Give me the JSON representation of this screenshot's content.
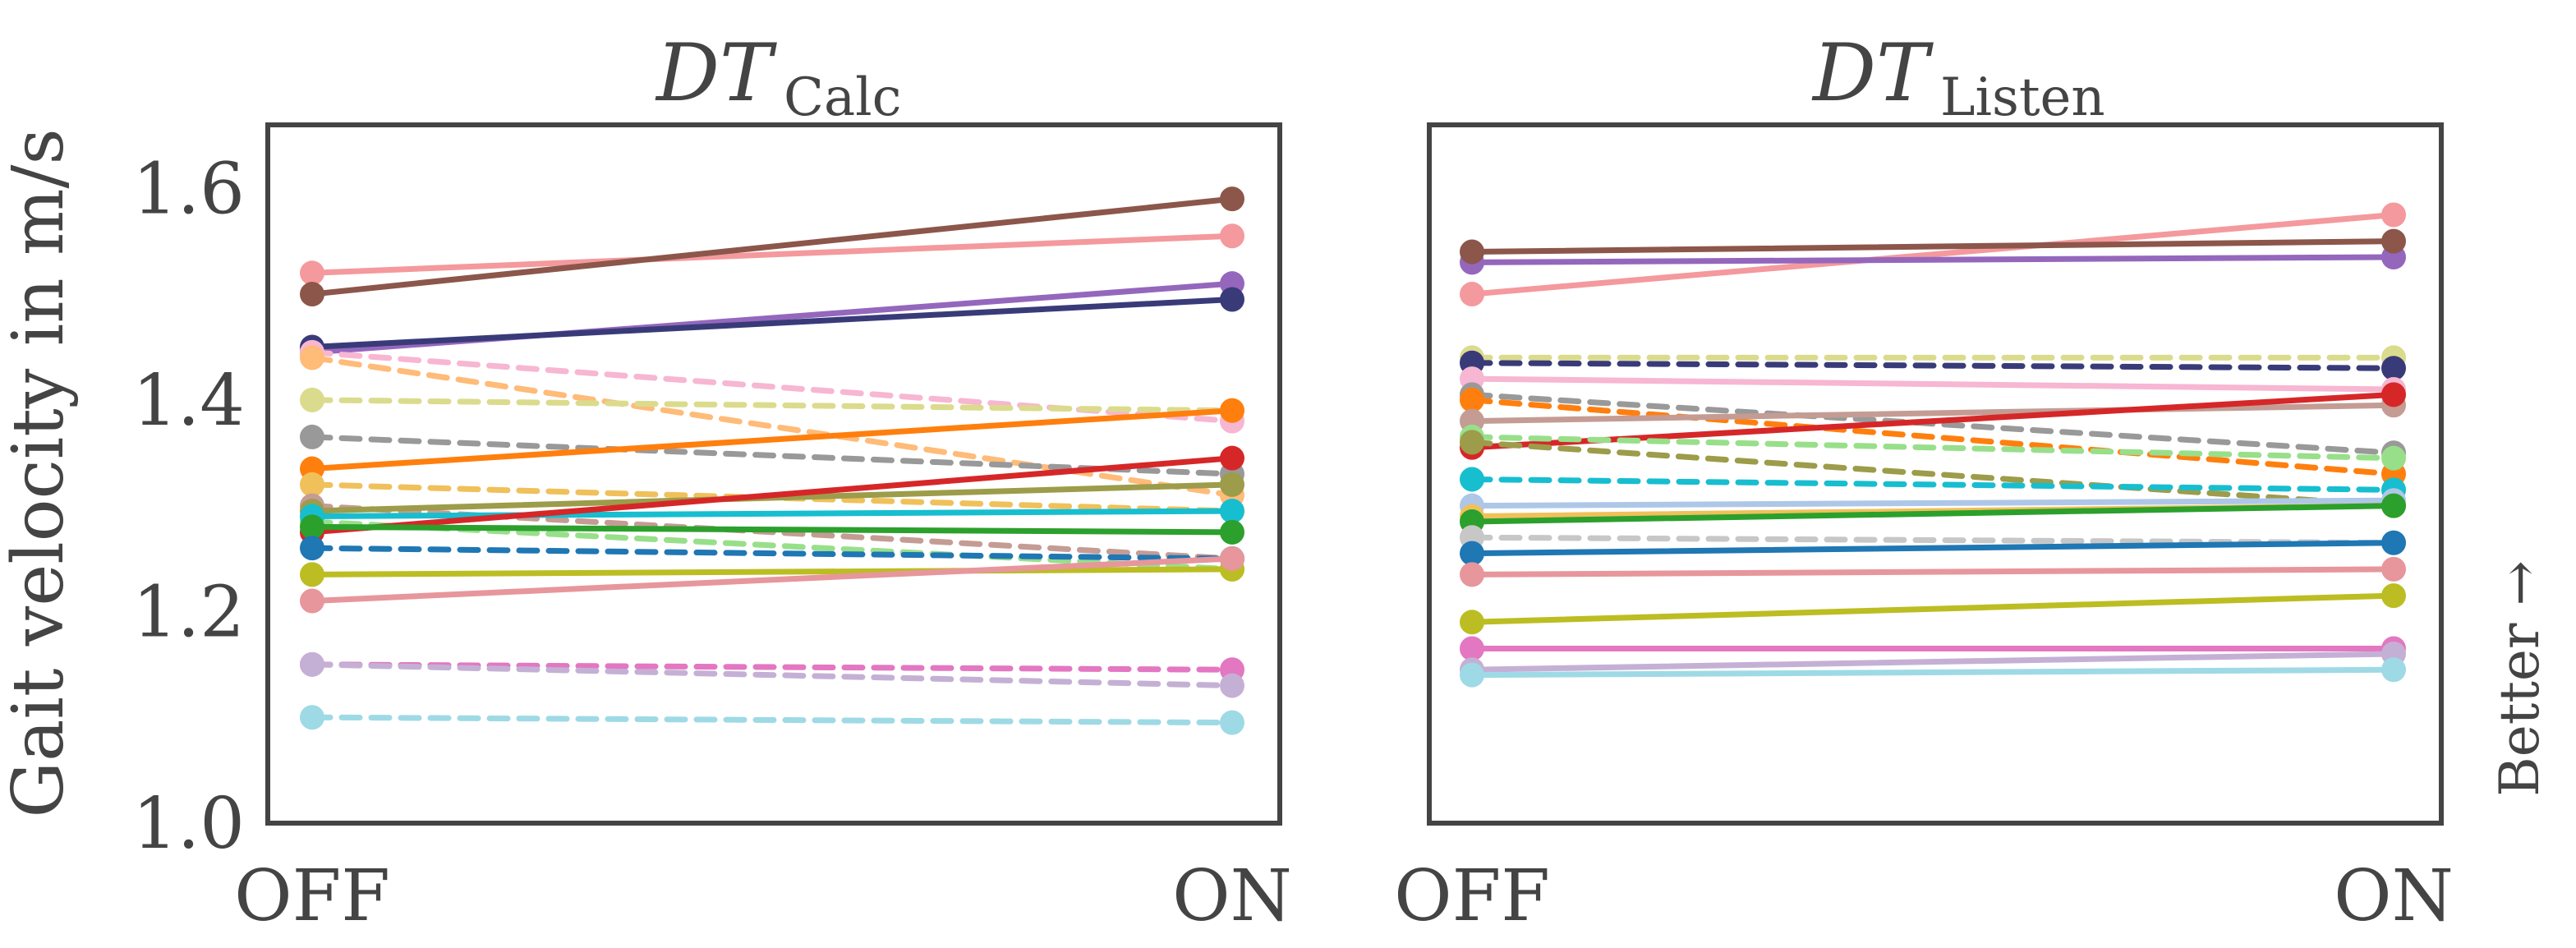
{
  "figure": {
    "ylabel": "Gait velocity in m/s",
    "right_note": "Better →"
  },
  "chart_data": [
    {
      "type": "line",
      "title_main": "DT",
      "title_sub": "Calc",
      "categories": [
        "OFF",
        "ON"
      ],
      "ylabel": "Gait velocity in m/s",
      "ylim": [
        1.0,
        1.66
      ],
      "yticks": [
        "1.0",
        "1.2",
        "1.4",
        "1.6"
      ],
      "yticks_values": [
        1.0,
        1.2,
        1.4,
        1.6
      ],
      "grid": false,
      "series": [
        {
          "values": [
            1.52,
            1.555
          ],
          "color": "#f4999d",
          "dashed": false
        },
        {
          "values": [
            1.5,
            1.59
          ],
          "color": "#8c564b",
          "dashed": false
        },
        {
          "values": [
            1.445,
            1.51
          ],
          "color": "#9467bd",
          "dashed": false
        },
        {
          "values": [
            1.45,
            1.495
          ],
          "color": "#393b79",
          "dashed": false
        },
        {
          "values": [
            1.445,
            1.38
          ],
          "color": "#f7b6d2",
          "dashed": true
        },
        {
          "values": [
            1.44,
            1.31
          ],
          "color": "#ffbb78",
          "dashed": true
        },
        {
          "values": [
            1.4,
            1.39
          ],
          "color": "#dbdb8d",
          "dashed": true
        },
        {
          "values": [
            1.365,
            1.33
          ],
          "color": "#999999",
          "dashed": true
        },
        {
          "values": [
            1.335,
            1.39
          ],
          "color": "#ff7f0e",
          "dashed": false
        },
        {
          "values": [
            1.32,
            1.295
          ],
          "color": "#f0c05a",
          "dashed": true
        },
        {
          "values": [
            1.3,
            1.25
          ],
          "color": "#c49c94",
          "dashed": true
        },
        {
          "values": [
            1.295,
            1.32
          ],
          "color": "#9c9c4a",
          "dashed": false
        },
        {
          "values": [
            1.285,
            1.24
          ],
          "color": "#98df8a",
          "dashed": true
        },
        {
          "values": [
            1.29,
            1.295
          ],
          "color": "#17becf",
          "dashed": false
        },
        {
          "values": [
            1.275,
            1.345
          ],
          "color": "#d62728",
          "dashed": false
        },
        {
          "values": [
            1.28,
            1.275
          ],
          "color": "#2ca02c",
          "dashed": false
        },
        {
          "values": [
            1.26,
            1.25
          ],
          "color": "#1f77b4",
          "dashed": true
        },
        {
          "values": [
            1.235,
            1.24
          ],
          "color": "#bcbd22",
          "dashed": false
        },
        {
          "values": [
            1.21,
            1.25
          ],
          "color": "#e7969c",
          "dashed": false
        },
        {
          "values": [
            1.15,
            1.145
          ],
          "color": "#e377c2",
          "dashed": true
        },
        {
          "values": [
            1.15,
            1.13
          ],
          "color": "#c5b0d5",
          "dashed": true
        },
        {
          "values": [
            1.1,
            1.095
          ],
          "color": "#9edae5",
          "dashed": true
        }
      ]
    },
    {
      "type": "line",
      "title_main": "DT",
      "title_sub": "Listen",
      "categories": [
        "OFF",
        "ON"
      ],
      "ylim": [
        1.0,
        1.66
      ],
      "grid": false,
      "series": [
        {
          "values": [
            1.5,
            1.575
          ],
          "color": "#f4999d",
          "dashed": false
        },
        {
          "values": [
            1.53,
            1.535
          ],
          "color": "#9467bd",
          "dashed": false
        },
        {
          "values": [
            1.54,
            1.55
          ],
          "color": "#8c564b",
          "dashed": false
        },
        {
          "values": [
            1.44,
            1.44
          ],
          "color": "#dbdb8d",
          "dashed": true
        },
        {
          "values": [
            1.435,
            1.43
          ],
          "color": "#393b79",
          "dashed": true
        },
        {
          "values": [
            1.42,
            1.41
          ],
          "color": "#f7b6d2",
          "dashed": false
        },
        {
          "values": [
            1.405,
            1.35
          ],
          "color": "#999999",
          "dashed": true
        },
        {
          "values": [
            1.4,
            1.33
          ],
          "color": "#ff7f0e",
          "dashed": true
        },
        {
          "values": [
            1.38,
            1.395
          ],
          "color": "#c49c94",
          "dashed": false
        },
        {
          "values": [
            1.355,
            1.405
          ],
          "color": "#d62728",
          "dashed": false
        },
        {
          "values": [
            1.365,
            1.345
          ],
          "color": "#98df8a",
          "dashed": true
        },
        {
          "values": [
            1.36,
            1.3
          ],
          "color": "#9c9c4a",
          "dashed": true
        },
        {
          "values": [
            1.325,
            1.315
          ],
          "color": "#17becf",
          "dashed": true
        },
        {
          "values": [
            1.3,
            1.305
          ],
          "color": "#aec7e8",
          "dashed": false
        },
        {
          "values": [
            1.29,
            1.3
          ],
          "color": "#f0c05a",
          "dashed": false
        },
        {
          "values": [
            1.285,
            1.3
          ],
          "color": "#2ca02c",
          "dashed": false
        },
        {
          "values": [
            1.27,
            1.265
          ],
          "color": "#c7c7c7",
          "dashed": true
        },
        {
          "values": [
            1.255,
            1.265
          ],
          "color": "#1f77b4",
          "dashed": false
        },
        {
          "values": [
            1.235,
            1.24
          ],
          "color": "#e7969c",
          "dashed": false
        },
        {
          "values": [
            1.19,
            1.215
          ],
          "color": "#bcbd22",
          "dashed": false
        },
        {
          "values": [
            1.165,
            1.165
          ],
          "color": "#e377c2",
          "dashed": false
        },
        {
          "values": [
            1.145,
            1.16
          ],
          "color": "#c5b0d5",
          "dashed": false
        },
        {
          "values": [
            1.14,
            1.145
          ],
          "color": "#9edae5",
          "dashed": false
        }
      ]
    }
  ]
}
